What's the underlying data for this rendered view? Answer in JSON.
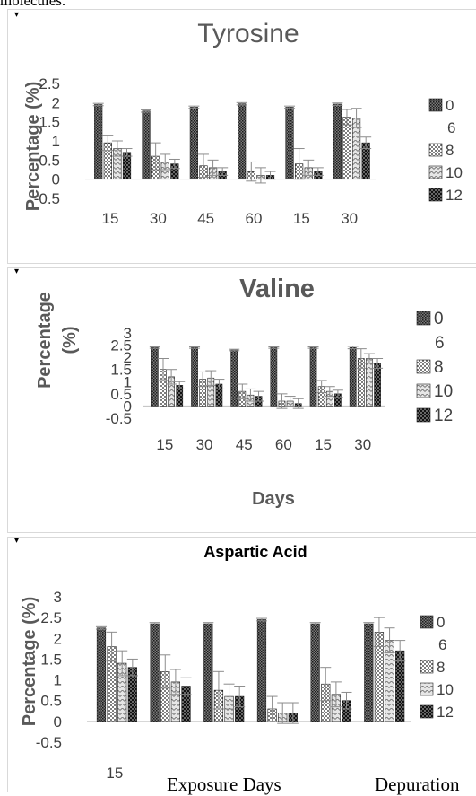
{
  "header": {
    "caption": "molecules."
  },
  "footer": {
    "exposure_label": "Exposure Days",
    "depuration_label": "Depuration"
  },
  "legend_labels": [
    "0",
    "6",
    "8",
    "10",
    "12"
  ],
  "chart_data": [
    {
      "type": "bar",
      "title": "Tyrosine",
      "ylabel": "Percentage (%)",
      "xlabel": "",
      "ylim": [
        -0.5,
        2.5
      ],
      "yticks": [
        "2.5",
        "2",
        "1.5",
        "1",
        "0.5",
        "0",
        "-0.5"
      ],
      "categories": [
        "15",
        "30",
        "45",
        "60",
        "15",
        "30"
      ],
      "series": [
        {
          "name": "0",
          "values": [
            1.95,
            1.78,
            1.88,
            1.97,
            1.88,
            1.96
          ],
          "errors": [
            0.03,
            0.03,
            0.03,
            0.03,
            0.03,
            0.03
          ]
        },
        {
          "name": "6",
          "values": [
            0.0,
            0.0,
            0.0,
            0.0,
            0.0,
            0.0
          ],
          "errors": [
            0.0,
            0.0,
            0.0,
            0.0,
            0.0,
            0.0
          ]
        },
        {
          "name": "8",
          "values": [
            0.95,
            0.6,
            0.35,
            0.2,
            0.4,
            1.62
          ],
          "errors": [
            0.2,
            0.35,
            0.3,
            0.25,
            0.4,
            0.2
          ]
        },
        {
          "name": "10",
          "values": [
            0.8,
            0.45,
            0.3,
            0.1,
            0.3,
            1.6
          ],
          "errors": [
            0.2,
            0.2,
            0.2,
            0.2,
            0.2,
            0.25
          ]
        },
        {
          "name": "12",
          "values": [
            0.7,
            0.4,
            0.2,
            0.1,
            0.2,
            0.95
          ],
          "errors": [
            0.1,
            0.12,
            0.1,
            0.1,
            0.1,
            0.15
          ]
        }
      ]
    },
    {
      "type": "bar",
      "title": "Valine",
      "ylabel": "Percentage (%)",
      "xlabel": "Days",
      "ylim": [
        -0.5,
        3
      ],
      "yticks": [
        "3",
        "2.5",
        "2",
        "1.5",
        "1",
        "0.5",
        "0",
        "-0.5"
      ],
      "categories": [
        "15",
        "30",
        "45",
        "60",
        "15",
        "30"
      ],
      "series": [
        {
          "name": "0",
          "values": [
            2.4,
            2.4,
            2.3,
            2.4,
            2.4,
            2.4
          ],
          "errors": [
            0.03,
            0.03,
            0.03,
            0.03,
            0.03,
            0.05
          ]
        },
        {
          "name": "6",
          "values": [
            0.0,
            0.0,
            0.0,
            0.0,
            0.0,
            0.0
          ],
          "errors": [
            0.0,
            0.0,
            0.0,
            0.0,
            0.0,
            0.0
          ]
        },
        {
          "name": "8",
          "values": [
            1.5,
            1.1,
            0.6,
            0.2,
            0.8,
            1.95
          ],
          "errors": [
            0.45,
            0.3,
            0.3,
            0.3,
            0.25,
            0.4
          ]
        },
        {
          "name": "10",
          "values": [
            1.2,
            1.15,
            0.45,
            0.2,
            0.6,
            1.95
          ],
          "errors": [
            0.3,
            0.3,
            0.25,
            0.2,
            0.2,
            0.2
          ]
        },
        {
          "name": "12",
          "values": [
            0.85,
            0.9,
            0.4,
            0.1,
            0.5,
            1.75
          ],
          "errors": [
            0.15,
            0.2,
            0.2,
            0.2,
            0.15,
            0.2
          ]
        }
      ]
    },
    {
      "type": "bar",
      "title": "Aspartic Acid",
      "ylabel": "Percentage (%)",
      "xlabel": "",
      "ylim": [
        -0.5,
        3
      ],
      "yticks": [
        "3",
        "2.5",
        "2",
        "1.5",
        "1",
        "0.5",
        "0",
        "-0.5"
      ],
      "categories": [
        "15",
        "",
        "",
        "",
        "",
        ""
      ],
      "series": [
        {
          "name": "0",
          "values": [
            2.25,
            2.35,
            2.35,
            2.45,
            2.35,
            2.35
          ],
          "errors": [
            0.03,
            0.03,
            0.03,
            0.03,
            0.03,
            0.03
          ]
        },
        {
          "name": "6",
          "values": [
            0.0,
            0.0,
            0.0,
            0.0,
            0.0,
            0.0
          ],
          "errors": [
            0.0,
            0.0,
            0.0,
            0.0,
            0.0,
            0.0
          ]
        },
        {
          "name": "8",
          "values": [
            1.8,
            1.2,
            0.75,
            0.3,
            0.9,
            2.15
          ],
          "errors": [
            0.35,
            0.4,
            0.45,
            0.3,
            0.4,
            0.35
          ]
        },
        {
          "name": "10",
          "values": [
            1.4,
            0.95,
            0.6,
            0.2,
            0.65,
            1.95
          ],
          "errors": [
            0.3,
            0.3,
            0.3,
            0.25,
            0.3,
            0.3
          ]
        },
        {
          "name": "12",
          "values": [
            1.3,
            0.85,
            0.6,
            0.2,
            0.5,
            1.7
          ],
          "errors": [
            0.2,
            0.2,
            0.25,
            0.25,
            0.2,
            0.25
          ]
        }
      ]
    }
  ]
}
